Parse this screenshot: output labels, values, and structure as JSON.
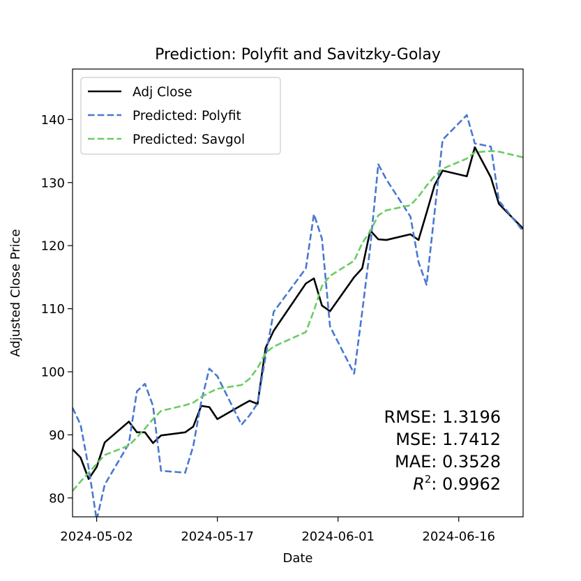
{
  "chart_data": {
    "type": "line",
    "title": "Prediction: Polyfit and Savitzky-Golay",
    "xlabel": "Date",
    "ylabel": "Adjusted Close Price",
    "xlim": [
      "2024-04-29",
      "2024-06-24"
    ],
    "ylim": [
      77,
      148
    ],
    "x_ticks": [
      "2024-05-02",
      "2024-05-17",
      "2024-06-01",
      "2024-06-16"
    ],
    "y_ticks": [
      80,
      90,
      100,
      110,
      120,
      130,
      140
    ],
    "legend": {
      "placement": "upper-left"
    },
    "grid": false,
    "series": [
      {
        "name": "Adj Close",
        "color": "#000000",
        "style": "solid",
        "points": [
          [
            "2024-04-29",
            87.7
          ],
          [
            "2024-04-30",
            86.4
          ],
          [
            "2024-05-01",
            83.0
          ],
          [
            "2024-05-02",
            84.9
          ],
          [
            "2024-05-03",
            88.8
          ],
          [
            "2024-05-06",
            92.1
          ],
          [
            "2024-05-07",
            90.4
          ],
          [
            "2024-05-08",
            90.4
          ],
          [
            "2024-05-09",
            88.7
          ],
          [
            "2024-05-10",
            89.9
          ],
          [
            "2024-05-13",
            90.4
          ],
          [
            "2024-05-14",
            91.3
          ],
          [
            "2024-05-15",
            94.6
          ],
          [
            "2024-05-16",
            94.4
          ],
          [
            "2024-05-17",
            92.5
          ],
          [
            "2024-05-20",
            94.7
          ],
          [
            "2024-05-21",
            95.4
          ],
          [
            "2024-05-22",
            94.9
          ],
          [
            "2024-05-23",
            103.8
          ],
          [
            "2024-05-24",
            106.5
          ],
          [
            "2024-05-28",
            114.0
          ],
          [
            "2024-05-29",
            114.8
          ],
          [
            "2024-05-30",
            110.5
          ],
          [
            "2024-05-31",
            109.6
          ],
          [
            "2024-06-03",
            115.0
          ],
          [
            "2024-06-04",
            116.4
          ],
          [
            "2024-06-05",
            122.4
          ],
          [
            "2024-06-06",
            121.0
          ],
          [
            "2024-06-07",
            120.9
          ],
          [
            "2024-06-10",
            121.8
          ],
          [
            "2024-06-11",
            120.9
          ],
          [
            "2024-06-12",
            125.2
          ],
          [
            "2024-06-13",
            129.6
          ],
          [
            "2024-06-14",
            131.9
          ],
          [
            "2024-06-17",
            131.0
          ],
          [
            "2024-06-18",
            135.6
          ],
          [
            "2024-06-20",
            130.8
          ],
          [
            "2024-06-21",
            126.6
          ],
          [
            "2024-06-24",
            122.7
          ]
        ]
      },
      {
        "name": "Predicted: Polyfit",
        "color": "#4878d0",
        "style": "dashed",
        "points": [
          [
            "2024-04-29",
            94.3
          ],
          [
            "2024-04-30",
            91.6
          ],
          [
            "2024-05-01",
            84.8
          ],
          [
            "2024-05-02",
            76.5
          ],
          [
            "2024-05-03",
            82.1
          ],
          [
            "2024-05-06",
            88.6
          ],
          [
            "2024-05-07",
            96.9
          ],
          [
            "2024-05-08",
            98.1
          ],
          [
            "2024-05-09",
            94.6
          ],
          [
            "2024-05-10",
            84.3
          ],
          [
            "2024-05-13",
            84.0
          ],
          [
            "2024-05-14",
            88.2
          ],
          [
            "2024-05-15",
            95.3
          ],
          [
            "2024-05-16",
            100.5
          ],
          [
            "2024-05-17",
            99.3
          ],
          [
            "2024-05-20",
            91.6
          ],
          [
            "2024-05-21",
            93.1
          ],
          [
            "2024-05-22",
            95.0
          ],
          [
            "2024-05-23",
            102.5
          ],
          [
            "2024-05-24",
            109.5
          ],
          [
            "2024-05-28",
            116.4
          ],
          [
            "2024-05-29",
            125.0
          ],
          [
            "2024-05-30",
            121.1
          ],
          [
            "2024-05-31",
            107.2
          ],
          [
            "2024-06-03",
            99.7
          ],
          [
            "2024-06-04",
            109.5
          ],
          [
            "2024-06-05",
            119.8
          ],
          [
            "2024-06-06",
            132.9
          ],
          [
            "2024-06-07",
            130.5
          ],
          [
            "2024-06-10",
            124.6
          ],
          [
            "2024-06-11",
            117.4
          ],
          [
            "2024-06-12",
            113.8
          ],
          [
            "2024-06-13",
            125.3
          ],
          [
            "2024-06-14",
            136.8
          ],
          [
            "2024-06-17",
            140.7
          ],
          [
            "2024-06-18",
            136.2
          ],
          [
            "2024-06-20",
            135.7
          ],
          [
            "2024-06-21",
            127.1
          ],
          [
            "2024-06-24",
            122.3
          ]
        ]
      },
      {
        "name": "Predicted: Savgol",
        "color": "#6acc64",
        "style": "dashed",
        "points": [
          [
            "2024-04-29",
            81.1
          ],
          [
            "2024-04-30",
            82.6
          ],
          [
            "2024-05-01",
            84.0
          ],
          [
            "2024-05-02",
            85.4
          ],
          [
            "2024-05-03",
            86.8
          ],
          [
            "2024-05-06",
            88.3
          ],
          [
            "2024-05-07",
            89.6
          ],
          [
            "2024-05-08",
            91.0
          ],
          [
            "2024-05-09",
            92.5
          ],
          [
            "2024-05-10",
            93.8
          ],
          [
            "2024-05-13",
            94.7
          ],
          [
            "2024-05-14",
            95.1
          ],
          [
            "2024-05-15",
            96.0
          ],
          [
            "2024-05-16",
            96.7
          ],
          [
            "2024-05-17",
            97.3
          ],
          [
            "2024-05-20",
            97.9
          ],
          [
            "2024-05-21",
            98.9
          ],
          [
            "2024-05-22",
            100.6
          ],
          [
            "2024-05-23",
            103.0
          ],
          [
            "2024-05-24",
            104.0
          ],
          [
            "2024-05-28",
            106.3
          ],
          [
            "2024-05-29",
            109.7
          ],
          [
            "2024-05-30",
            113.6
          ],
          [
            "2024-05-31",
            115.2
          ],
          [
            "2024-06-03",
            117.6
          ],
          [
            "2024-06-04",
            120.4
          ],
          [
            "2024-06-05",
            122.3
          ],
          [
            "2024-06-06",
            124.8
          ],
          [
            "2024-06-07",
            125.6
          ],
          [
            "2024-06-10",
            126.4
          ],
          [
            "2024-06-11",
            127.8
          ],
          [
            "2024-06-12",
            129.5
          ],
          [
            "2024-06-13",
            131.0
          ],
          [
            "2024-06-14",
            132.2
          ],
          [
            "2024-06-17",
            133.8
          ],
          [
            "2024-06-18",
            134.8
          ],
          [
            "2024-06-20",
            135.0
          ],
          [
            "2024-06-21",
            134.9
          ],
          [
            "2024-06-24",
            134.0
          ]
        ]
      }
    ],
    "annotations": {
      "rmse": "RMSE: 1.3196",
      "mse": "MSE: 1.7412",
      "mae": "MAE: 0.3528",
      "r2_value": ": 0.9962"
    }
  }
}
